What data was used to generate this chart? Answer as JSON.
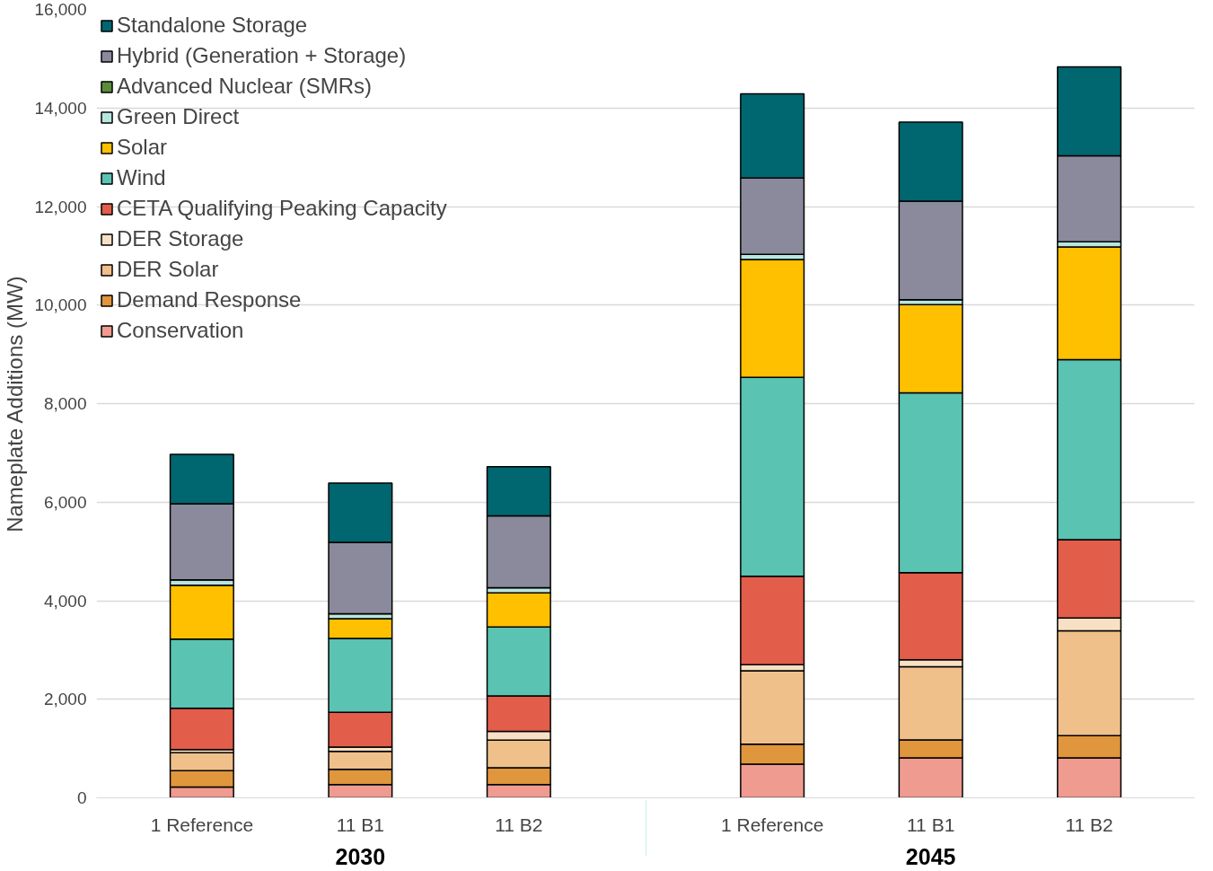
{
  "chart_data": {
    "type": "bar",
    "stacked": true,
    "ylabel": "Nameplate Additions (MW)",
    "categories": [
      "1 Reference",
      "11 B1",
      "11 B2",
      "1 Reference",
      "11 B1",
      "11 B2"
    ],
    "annotations": [
      "2030",
      "2045"
    ],
    "ylim": [
      0,
      16000
    ],
    "yticks": [
      0,
      {
        "value": 2000,
        "label": "2,000"
      },
      {
        "value": 4000,
        "label": "4,000"
      },
      {
        "value": 6000,
        "label": "6,000"
      },
      {
        "value": 8000,
        "label": "8,000"
      },
      {
        "value": 10000,
        "label": "10,000"
      },
      {
        "value": 12000,
        "label": "12,000"
      },
      {
        "value": 14000,
        "label": "14,000"
      },
      {
        "value": 16000,
        "label": "16,000"
      }
    ],
    "grid": "y",
    "legend": "top left",
    "series": [
      {
        "name": "Conservation",
        "color": "#ef9b90",
        "values": [
          220,
          270,
          270,
          685,
          810,
          810
        ]
      },
      {
        "name": "Demand Response",
        "color": "#e0963c",
        "values": [
          330,
          310,
          340,
          405,
          365,
          450
        ]
      },
      {
        "name": "DER Solar",
        "color": "#f0c08a",
        "values": [
          365,
          365,
          560,
          1490,
          1485,
          2130
        ]
      },
      {
        "name": "DER Storage",
        "color": "#f8e0c4",
        "values": [
          65,
          85,
          180,
          120,
          140,
          260
        ]
      },
      {
        "name": "CETA Qualifying Peaking Capacity",
        "color": "#e25d4a",
        "values": [
          840,
          705,
          720,
          1795,
          1770,
          1590
        ]
      },
      {
        "name": "Wind",
        "color": "#5ac3b2",
        "values": [
          1400,
          1500,
          1395,
          4040,
          3650,
          3655
        ]
      },
      {
        "name": "Solar",
        "color": "#ffc000",
        "values": [
          1095,
          400,
          695,
          2390,
          1790,
          2285
        ]
      },
      {
        "name": "Green Direct",
        "color": "#b8e6de",
        "values": [
          110,
          100,
          105,
          105,
          100,
          105
        ]
      },
      {
        "name": "Advanced Nuclear (SMRs)",
        "color": "#5b8c3a",
        "values": [
          0,
          0,
          0,
          0,
          0,
          0
        ]
      },
      {
        "name": "Hybrid (Generation + Storage)",
        "color": "#8b8a9c",
        "values": [
          1545,
          1450,
          1455,
          1550,
          2000,
          1745
        ]
      },
      {
        "name": "Standalone Storage",
        "color": "#006670",
        "values": [
          1000,
          1200,
          1000,
          1705,
          1605,
          1805
        ]
      }
    ]
  }
}
